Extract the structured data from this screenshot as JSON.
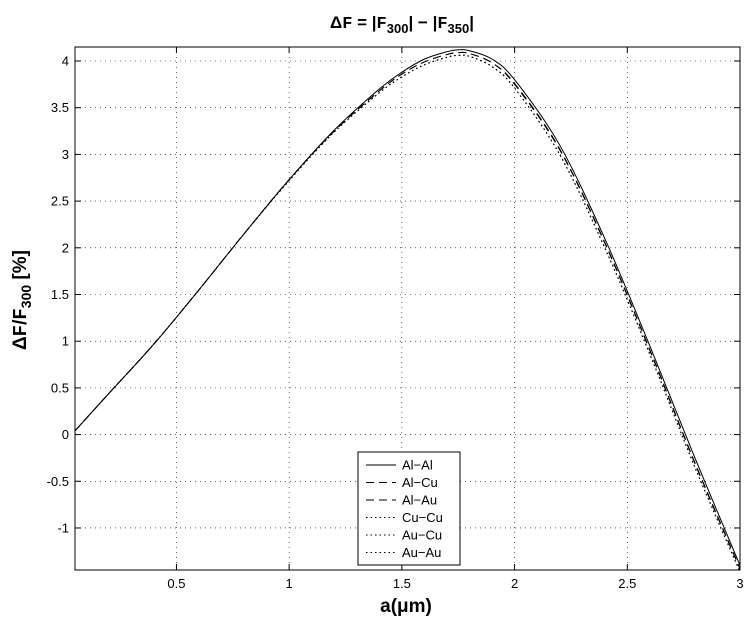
{
  "chart_data": {
    "type": "line",
    "title": "ΔF = |F300| − |F350|",
    "title_parts": {
      "delta": "Δ",
      "f": "F",
      "eq": " = |",
      "f1": "F",
      "sub1": "300",
      "mid": "| − |",
      "f2": "F",
      "sub2": "350",
      "end": "|"
    },
    "xlabel": "a(μm)",
    "ylabel": "ΔF/F300 [%]",
    "ylabel_parts": {
      "delta": "Δ",
      "f1": "F",
      "slash": "/",
      "f2": "F",
      "sub": "300",
      "tail": " [%]"
    },
    "xlim": [
      0.05,
      3.0
    ],
    "ylim": [
      -1.45,
      4.15
    ],
    "xticks": [
      0.5,
      1,
      1.5,
      2,
      2.5,
      3
    ],
    "xtick_labels": [
      "0.5",
      "1",
      "1.5",
      "2",
      "2.5",
      "3"
    ],
    "yticks": [
      -1,
      -0.5,
      0,
      0.5,
      1,
      1.5,
      2,
      2.5,
      3,
      3.5,
      4
    ],
    "ytick_labels": [
      "-1",
      "-0.5",
      "0",
      "0.5",
      "1",
      "1.5",
      "2",
      "2.5",
      "3",
      "3.5",
      "4"
    ],
    "grid": true,
    "legend_position": "bottom-center",
    "x": [
      0.05,
      0.2,
      0.4,
      0.6,
      0.8,
      1.0,
      1.2,
      1.4,
      1.5,
      1.6,
      1.7,
      1.75,
      1.8,
      1.9,
      2.0,
      2.2,
      2.4,
      2.6,
      2.8,
      3.0
    ],
    "series": [
      {
        "name": "Al−Al",
        "dash": "solid",
        "values": [
          0.04,
          0.44,
          0.97,
          1.55,
          2.15,
          2.73,
          3.26,
          3.7,
          3.88,
          4.02,
          4.1,
          4.12,
          4.11,
          4.02,
          3.8,
          3.1,
          2.1,
          0.95,
          -0.25,
          -1.4
        ]
      },
      {
        "name": "Al−Cu",
        "dash": "dashed",
        "values": [
          0.04,
          0.44,
          0.97,
          1.55,
          2.15,
          2.73,
          3.25,
          3.68,
          3.86,
          3.99,
          4.07,
          4.09,
          4.08,
          3.98,
          3.76,
          3.06,
          2.06,
          0.91,
          -0.3,
          -1.43
        ]
      },
      {
        "name": "Al−Au",
        "dash": "dashed",
        "values": [
          0.04,
          0.44,
          0.97,
          1.55,
          2.15,
          2.73,
          3.25,
          3.68,
          3.86,
          3.99,
          4.07,
          4.09,
          4.08,
          3.98,
          3.75,
          3.05,
          2.05,
          0.9,
          -0.31,
          -1.44
        ]
      },
      {
        "name": "Cu−Cu",
        "dash": "dotted",
        "values": [
          0.04,
          0.44,
          0.97,
          1.55,
          2.15,
          2.72,
          3.24,
          3.66,
          3.83,
          3.96,
          4.04,
          4.06,
          4.05,
          3.94,
          3.71,
          3.0,
          2.0,
          0.86,
          -0.35,
          -1.47
        ]
      },
      {
        "name": "Au−Cu",
        "dash": "dotted",
        "values": [
          0.04,
          0.44,
          0.97,
          1.55,
          2.15,
          2.72,
          3.24,
          3.66,
          3.83,
          3.96,
          4.04,
          4.06,
          4.05,
          3.94,
          3.71,
          3.0,
          2.0,
          0.86,
          -0.35,
          -1.47
        ]
      },
      {
        "name": "Au−Au",
        "dash": "dotted",
        "values": [
          0.04,
          0.44,
          0.97,
          1.55,
          2.15,
          2.72,
          3.24,
          3.66,
          3.83,
          3.96,
          4.04,
          4.06,
          4.05,
          3.94,
          3.71,
          3.0,
          2.0,
          0.86,
          -0.35,
          -1.47
        ]
      }
    ]
  }
}
